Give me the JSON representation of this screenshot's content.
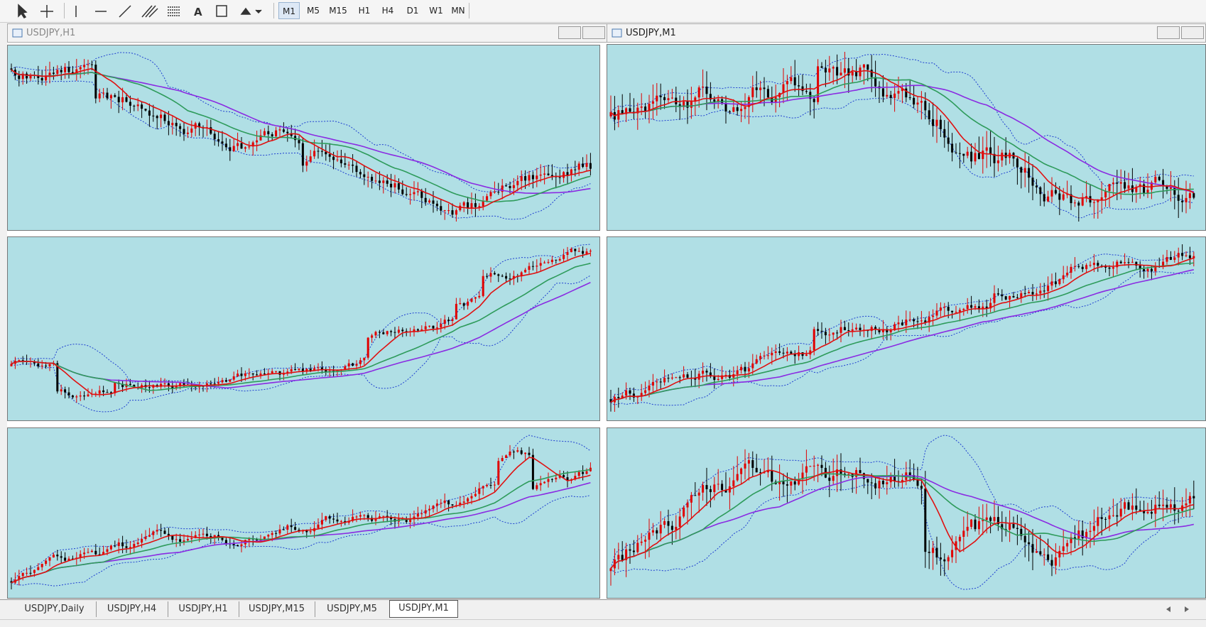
{
  "toolbar": {
    "timeframes": [
      "M1",
      "M5",
      "M15",
      "H1",
      "H4",
      "D1",
      "W1",
      "MN"
    ]
  },
  "windows": [
    {
      "title": "USDJPY,H1"
    },
    {
      "title": "USDJPY,M1"
    }
  ],
  "tabs": {
    "items": [
      "USDJPY,Daily",
      "USDJPY,H4",
      "USDJPY,H1",
      "USDJPY,M15",
      "USDJPY,M5",
      "USDJPY,M1"
    ],
    "active": "USDJPY,M1"
  }
}
